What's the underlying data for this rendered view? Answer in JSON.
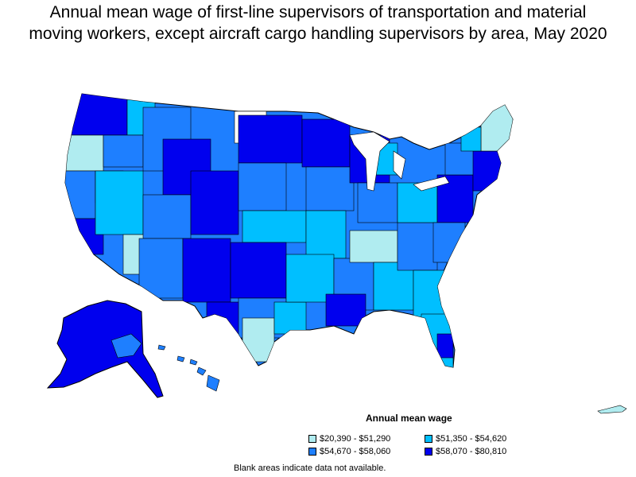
{
  "title_line1": "Annual mean wage of first-line supervisors of transportation and material",
  "title_line2": "moving workers, except aircraft cargo handling supervisors by area, May 2020",
  "legend": {
    "title": "Annual mean wage",
    "items": [
      {
        "label": "$20,390 - $51,290",
        "color": "#b0ecf0"
      },
      {
        "label": "$51,350 - $54,620",
        "color": "#00bfff"
      },
      {
        "label": "$54,670 - $58,060",
        "color": "#1e7fff"
      },
      {
        "label": "$58,070 - $80,810",
        "color": "#0000ee"
      }
    ]
  },
  "footnote": "Blank areas indicate data not available.",
  "colors": {
    "blank": "#ffffff",
    "border": "#000000"
  }
}
